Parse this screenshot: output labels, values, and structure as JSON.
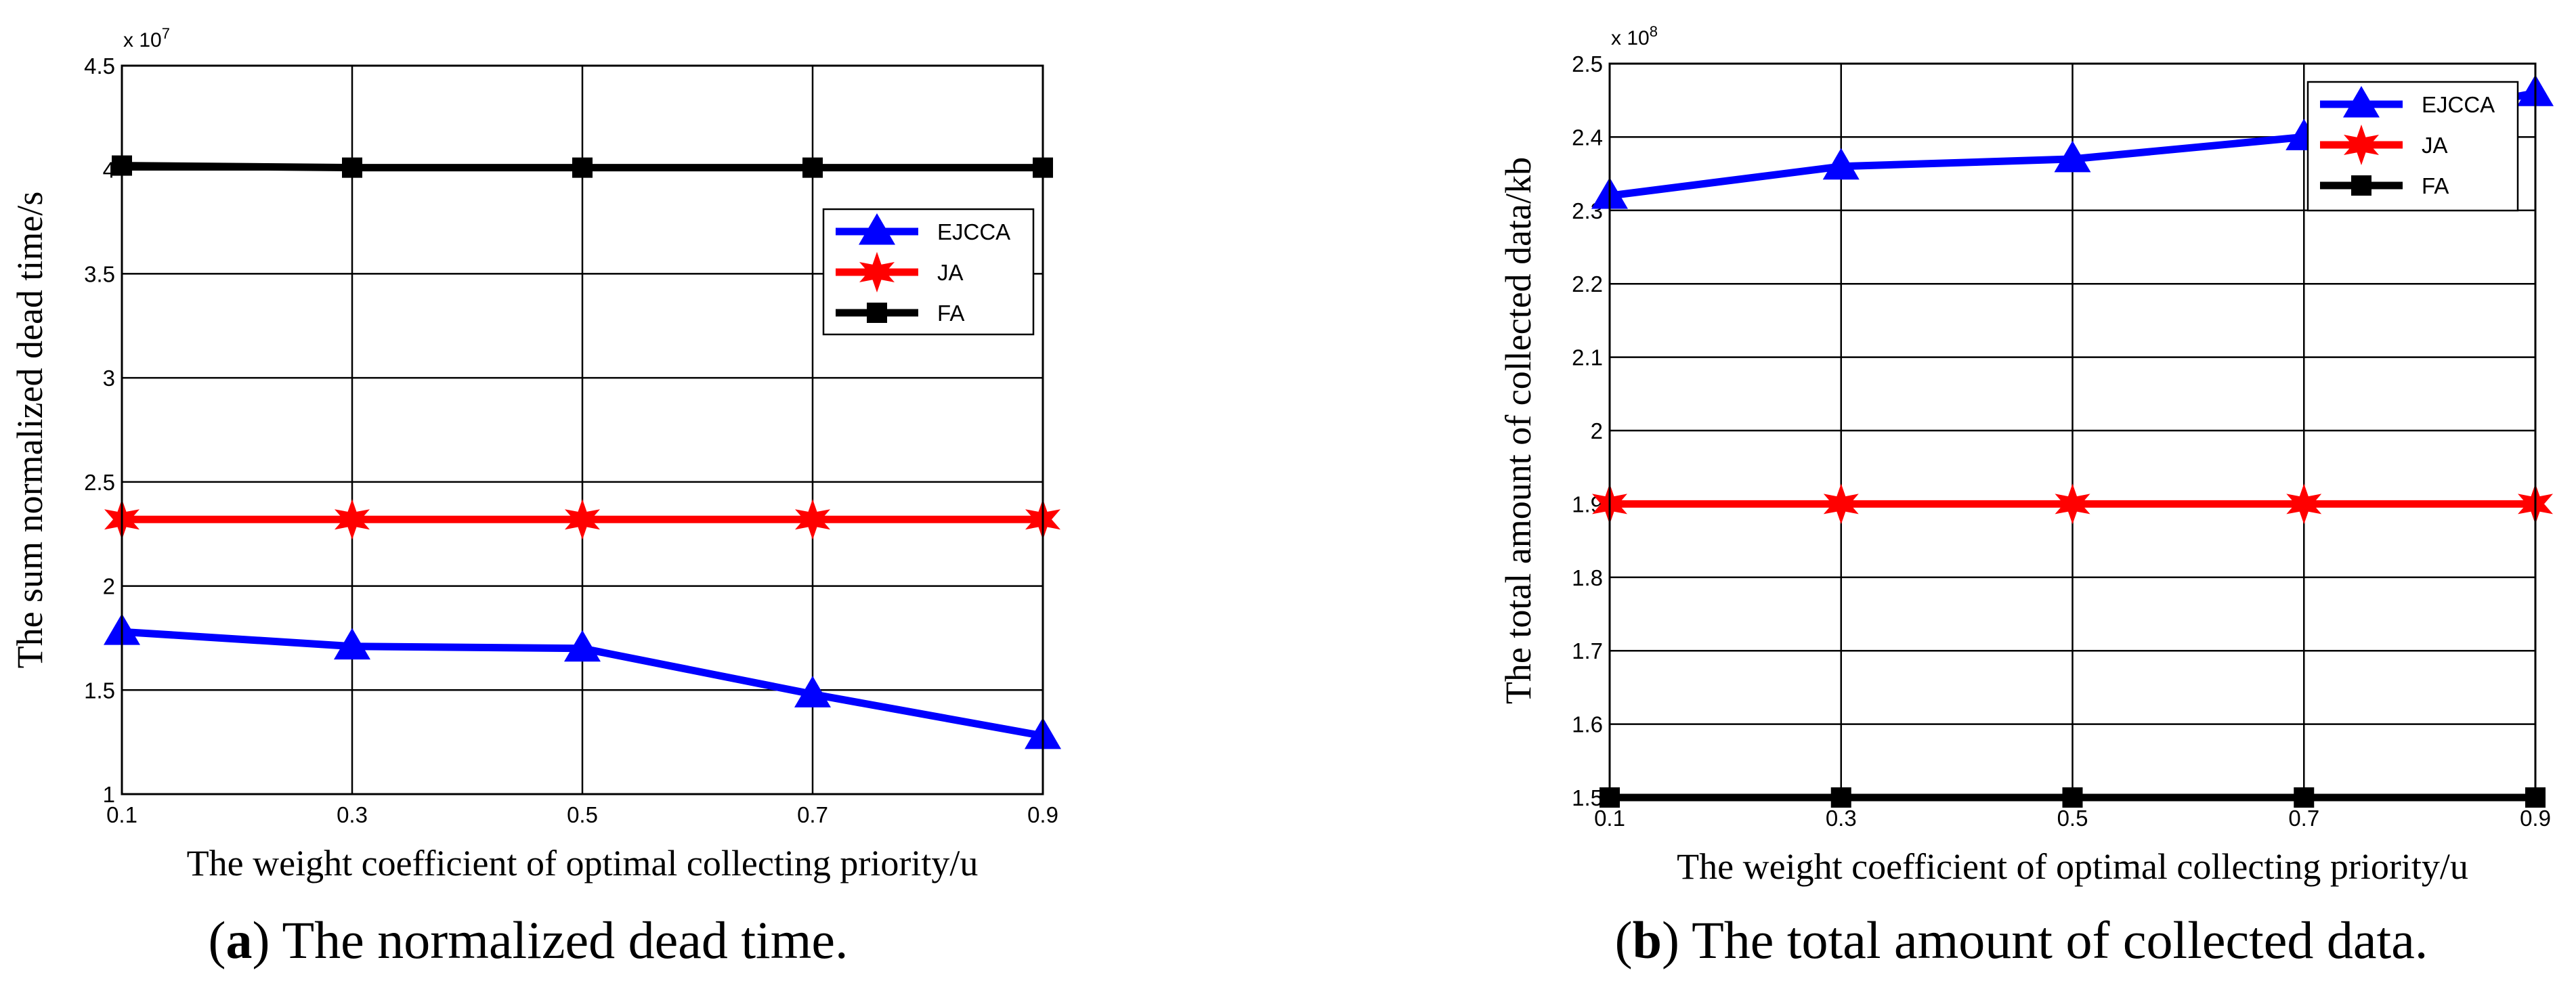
{
  "chart_data": [
    {
      "type": "line",
      "panel": "a",
      "xlabel": "The weight coefficient of optimal collecting priority/u",
      "ylabel": "The sum normalized dead time/s",
      "exponent": "x 10",
      "exponent_power": "7",
      "x": [
        0.1,
        0.3,
        0.5,
        0.7,
        0.9
      ],
      "xlim": [
        0.1,
        0.9
      ],
      "ylim": [
        1,
        4.5
      ],
      "xticks": [
        "0.1",
        "0.3",
        "0.5",
        "0.7",
        "0.9"
      ],
      "yticks": [
        "1",
        "1.5",
        "2",
        "2.5",
        "3",
        "3.5",
        "4",
        "4.5"
      ],
      "grid": true,
      "legend_position": "upper-right",
      "series": [
        {
          "name": "EJCCA",
          "color": "#0000ff",
          "marker": "triangle",
          "values": [
            1.78,
            1.71,
            1.7,
            1.48,
            1.28
          ]
        },
        {
          "name": "JA",
          "color": "#ff0000",
          "marker": "star",
          "values": [
            2.32,
            2.32,
            2.32,
            2.32,
            2.32
          ]
        },
        {
          "name": "FA",
          "color": "#000000",
          "marker": "square",
          "values": [
            4.02,
            4.01,
            4.01,
            4.01,
            4.01
          ]
        }
      ],
      "caption_label": "a",
      "caption_text": " The normalized dead time."
    },
    {
      "type": "line",
      "panel": "b",
      "xlabel": "The weight coefficient of optimal collecting priority/u",
      "ylabel": "The total amount of collected data/kb",
      "exponent": "x 10",
      "exponent_power": "8",
      "x": [
        0.1,
        0.3,
        0.5,
        0.7,
        0.9
      ],
      "xlim": [
        0.1,
        0.9
      ],
      "ylim": [
        1.5,
        2.5
      ],
      "xticks": [
        "0.1",
        "0.3",
        "0.5",
        "0.7",
        "0.9"
      ],
      "yticks": [
        "1.5",
        "1.6",
        "1.7",
        "1.8",
        "1.9",
        "2",
        "2.1",
        "2.2",
        "2.3",
        "2.4",
        "2.5"
      ],
      "grid": true,
      "legend_position": "upper-right",
      "series": [
        {
          "name": "EJCCA",
          "color": "#0000ff",
          "marker": "triangle",
          "values": [
            2.32,
            2.36,
            2.37,
            2.4,
            2.46
          ]
        },
        {
          "name": "JA",
          "color": "#ff0000",
          "marker": "star",
          "values": [
            1.9,
            1.9,
            1.9,
            1.9,
            1.9
          ]
        },
        {
          "name": "FA",
          "color": "#000000",
          "marker": "square",
          "values": [
            1.5,
            1.5,
            1.5,
            1.5,
            1.5
          ]
        }
      ],
      "caption_label": "b",
      "caption_text": " The total amount of collected data."
    }
  ]
}
